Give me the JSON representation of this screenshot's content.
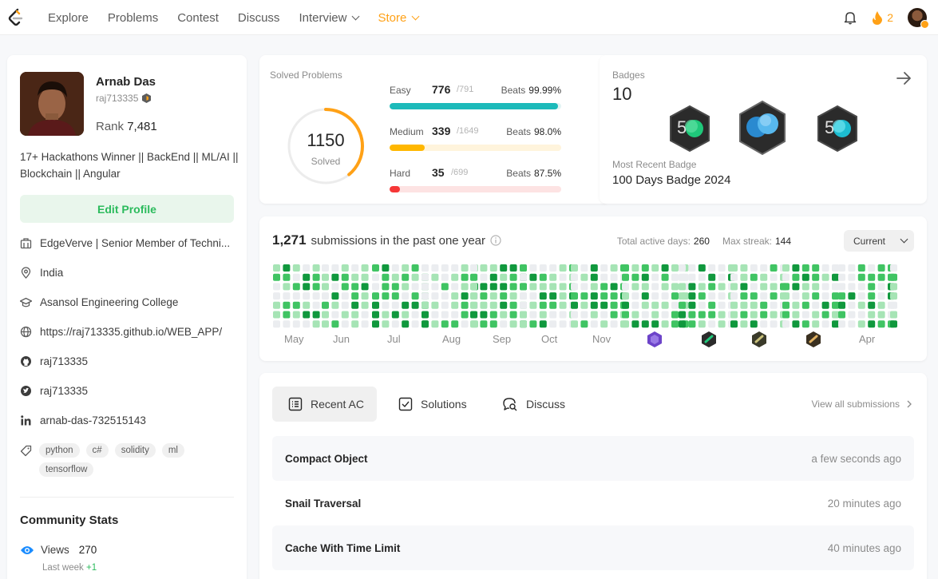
{
  "nav": {
    "items": [
      {
        "label": "Explore"
      },
      {
        "label": "Problems"
      },
      {
        "label": "Contest"
      },
      {
        "label": "Discuss"
      },
      {
        "label": "Interview"
      },
      {
        "label": "Store"
      }
    ],
    "streak_count": "2",
    "accent_color": "#ffa116"
  },
  "profile": {
    "name": "Arnab Das",
    "username": "raj713335",
    "rank_label": "Rank",
    "rank_value": "7,481",
    "bio": "17+ Hackathons Winner || BackEnd || ML/AI || Blockchain || Angular",
    "edit_label": "Edit Profile",
    "info": [
      {
        "icon": "building-icon",
        "text": "EdgeVerve | Senior Member of Techni..."
      },
      {
        "icon": "location-pin-icon",
        "text": "India"
      },
      {
        "icon": "graduation-cap-icon",
        "text": "Asansol Engineering College"
      },
      {
        "icon": "globe-icon",
        "text": "https://raj713335.github.io/WEB_APP/"
      },
      {
        "icon": "github-icon",
        "text": "raj713335"
      },
      {
        "icon": "twitter-icon",
        "text": "raj713335"
      },
      {
        "icon": "linkedin-icon",
        "text": "arnab-das-732515143"
      }
    ],
    "skills": [
      "python",
      "c#",
      "solidity",
      "ml",
      "tensorflow"
    ]
  },
  "community": {
    "title": "Community Stats",
    "views_label": "Views",
    "views_value": "270",
    "last_week_label": "Last week",
    "last_week_value": "+1"
  },
  "solved": {
    "title": "Solved Problems",
    "total": "1150",
    "total_label": "Solved",
    "ring_fraction": 0.39,
    "difficulties": [
      {
        "name": "Easy",
        "solved": "776",
        "total": "/791",
        "beats_label": "Beats",
        "beats": "99.99%",
        "fraction": 0.981,
        "color": "#1cbaba",
        "track": "#e2f4f4"
      },
      {
        "name": "Medium",
        "solved": "339",
        "total": "/1649",
        "beats_label": "Beats",
        "beats": "98.0%",
        "fraction": 0.206,
        "color": "#ffb700",
        "track": "#fff4dc"
      },
      {
        "name": "Hard",
        "solved": "35",
        "total": "/699",
        "beats_label": "Beats",
        "beats": "87.5%",
        "fraction": 0.05,
        "color": "#f63737",
        "track": "#fde3e3"
      }
    ]
  },
  "badges": {
    "title": "Badges",
    "count": "10",
    "recent_label": "Most Recent Badge",
    "recent_name": "100 Days Badge 2024"
  },
  "heatmap": {
    "count": "1,271",
    "title": "submissions in the past one year",
    "active_label": "Total active days:",
    "active_value": "260",
    "streak_label": "Max streak:",
    "streak_value": "144",
    "period": "Current",
    "months": [
      "May",
      "Jun",
      "Jul",
      "Aug",
      "Sep",
      "Oct",
      "Nov",
      "Apr"
    ]
  },
  "submissions": {
    "tabs": [
      {
        "label": "Recent AC",
        "icon": "list-icon"
      },
      {
        "label": "Solutions",
        "icon": "checkbox-icon"
      },
      {
        "label": "Discuss",
        "icon": "chat-search-icon"
      }
    ],
    "view_all": "View all submissions",
    "rows": [
      {
        "title": "Compact Object",
        "time": "a few seconds ago"
      },
      {
        "title": "Snail Traversal",
        "time": "20 minutes ago"
      },
      {
        "title": "Cache With Time Limit",
        "time": "40 minutes ago"
      }
    ]
  }
}
